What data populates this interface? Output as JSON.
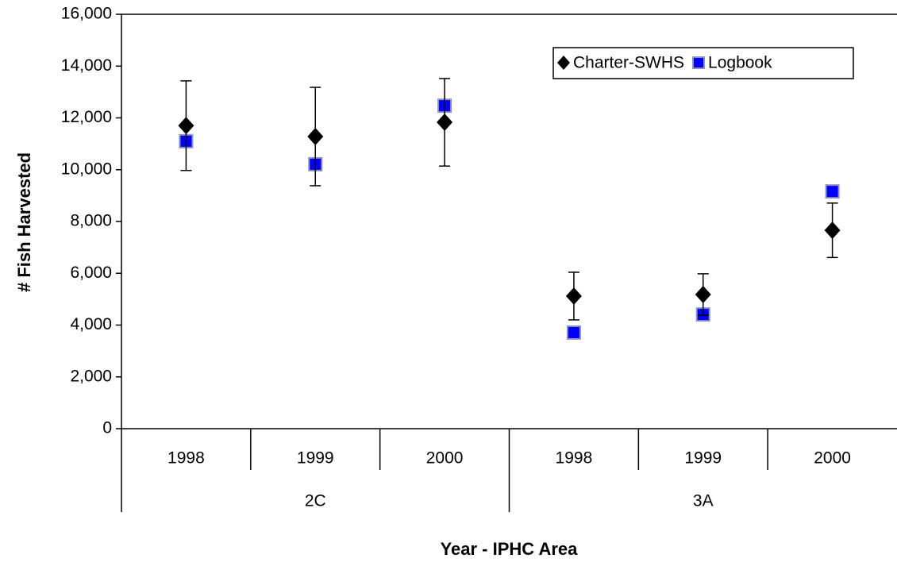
{
  "chart_data": {
    "type": "errorbar_scatter",
    "y_label": "# Fish Harvested",
    "x_label": "Year - IPHC Area",
    "groups": [
      {
        "label": "2C",
        "categories": [
          "1998",
          "1999",
          "2000"
        ]
      },
      {
        "label": "3A",
        "categories": [
          "1998",
          "1999",
          "2000"
        ]
      }
    ],
    "series": [
      {
        "name": "Charter-SWHS",
        "marker": "diamond",
        "color": "#000000",
        "values": [
          11700,
          11280,
          11830,
          5120,
          5180,
          7660
        ],
        "errors": [
          1730,
          1900,
          1690,
          920,
          800,
          1050
        ]
      },
      {
        "name": "Logbook",
        "marker": "square",
        "color": "#0000ff",
        "values": [
          11100,
          10210,
          12470,
          3710,
          4410,
          9160
        ]
      }
    ],
    "ylim": [
      0,
      16000
    ],
    "yticks": [
      {
        "value": 0,
        "label": "0"
      },
      {
        "value": 2000,
        "label": "2,000"
      },
      {
        "value": 4000,
        "label": "4,000"
      },
      {
        "value": 6000,
        "label": "6,000"
      },
      {
        "value": 8000,
        "label": "8,000"
      },
      {
        "value": 10000,
        "label": "10,000"
      },
      {
        "value": 12000,
        "label": "12,000"
      },
      {
        "value": 14000,
        "label": "14,000"
      },
      {
        "value": 16000,
        "label": "16,000"
      }
    ],
    "grid": false,
    "legend": "upper right"
  }
}
